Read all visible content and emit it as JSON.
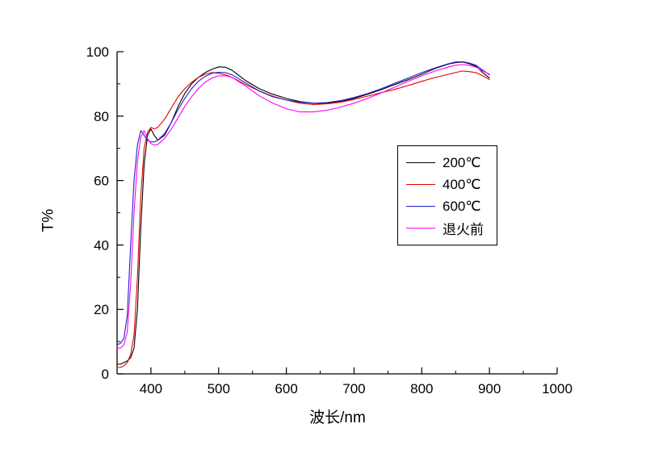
{
  "chart_data": {
    "type": "line",
    "title": "",
    "xlabel": "波长/nm",
    "ylabel": "T%",
    "xlim": [
      350,
      1000
    ],
    "ylim": [
      0,
      100
    ],
    "x_major_ticks": [
      400,
      500,
      600,
      700,
      800,
      900,
      1000
    ],
    "x_minor_ticks": [
      350,
      450,
      550,
      650,
      750,
      850,
      950
    ],
    "y_major_ticks": [
      0,
      20,
      40,
      60,
      80,
      100
    ],
    "y_minor_ticks": [
      10,
      30,
      50,
      70,
      90
    ],
    "grid": false,
    "legend_position": "center-right",
    "x": [
      350,
      355,
      360,
      365,
      370,
      375,
      380,
      385,
      390,
      395,
      400,
      405,
      410,
      420,
      430,
      440,
      450,
      460,
      470,
      480,
      490,
      500,
      510,
      520,
      540,
      560,
      580,
      600,
      620,
      640,
      660,
      680,
      700,
      720,
      740,
      760,
      780,
      800,
      820,
      840,
      850,
      860,
      870,
      880,
      890,
      900
    ],
    "series": [
      {
        "name": "200℃",
        "color": "#000000",
        "values": [
          3,
          3,
          3.5,
          4,
          5,
          8,
          20,
          45,
          65,
          74,
          76,
          74,
          72.5,
          74,
          78,
          83,
          87,
          90,
          92,
          93.5,
          94.5,
          95.3,
          95.2,
          94.2,
          91,
          88.5,
          86.8,
          85.5,
          84.5,
          84,
          84,
          84.5,
          85.5,
          86.8,
          88.2,
          89.8,
          91.3,
          93,
          94.8,
          96.2,
          96.6,
          96.8,
          96.3,
          95.5,
          93.5,
          91.8
        ]
      },
      {
        "name": "400℃",
        "color": "#e60000",
        "values": [
          2,
          2,
          2.5,
          3.5,
          6,
          12,
          30,
          55,
          70,
          75,
          76.5,
          76,
          76.5,
          79,
          82.5,
          86,
          88.5,
          90.5,
          92,
          93,
          93.5,
          93.3,
          92.8,
          92,
          89.8,
          87.8,
          86.2,
          85,
          84,
          83.6,
          83.8,
          84.3,
          85.2,
          86.2,
          87.3,
          88.3,
          89.5,
          90.8,
          92,
          93,
          93.5,
          94,
          93.8,
          93.5,
          92.5,
          91.3
        ]
      },
      {
        "name": "600℃",
        "color": "#2020c8",
        "values": [
          9,
          9.5,
          11,
          18,
          40,
          60,
          71,
          75.5,
          74,
          72.5,
          72,
          72,
          72.5,
          74.5,
          78,
          82,
          85.5,
          88.5,
          90.8,
          92.3,
          93.3,
          93.6,
          93.5,
          92.8,
          90.3,
          87.8,
          86,
          85,
          84.3,
          84,
          84.2,
          84.8,
          85.8,
          87,
          88.5,
          90.2,
          91.8,
          93.5,
          95,
          96.3,
          96.8,
          96.9,
          96.5,
          95.8,
          94.3,
          92.8
        ]
      },
      {
        "name": "退火前",
        "color": "#ff00ff",
        "values": [
          8,
          8,
          9,
          13,
          28,
          50,
          66,
          73.5,
          75.5,
          73,
          71.5,
          71,
          71.2,
          73,
          76,
          79.5,
          83,
          86,
          88.5,
          90.5,
          91.8,
          92.5,
          92.5,
          92,
          89.3,
          86.3,
          84,
          82.3,
          81.3,
          81.3,
          81.8,
          82.8,
          84,
          85.5,
          87.2,
          89,
          90.8,
          92.5,
          94,
          95.3,
          95.8,
          96,
          95.8,
          95.2,
          94,
          93
        ]
      }
    ]
  }
}
